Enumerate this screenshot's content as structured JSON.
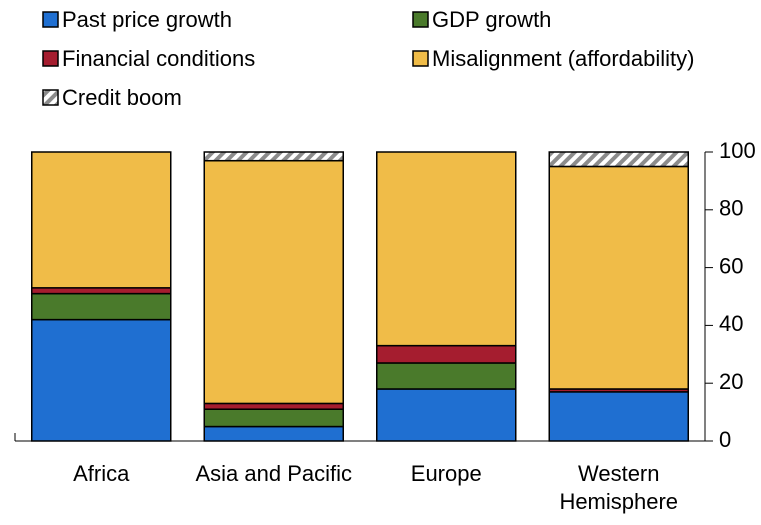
{
  "chart_data": {
    "type": "stacked_bar",
    "categories": [
      "Africa",
      "Asia and Pacific",
      "Europe",
      "Western Hemisphere"
    ],
    "series": [
      {
        "name": "Past price growth",
        "color": "#1f6fd1",
        "values": [
          42,
          5,
          18,
          17
        ]
      },
      {
        "name": "GDP growth",
        "color": "#4a7a2b",
        "values": [
          9,
          6,
          9,
          0
        ]
      },
      {
        "name": "Financial conditions",
        "color": "#a51d2f",
        "values": [
          2,
          2,
          6,
          1
        ]
      },
      {
        "name": "Misalignment (affordability)",
        "color": "#f0bc48",
        "values": [
          47,
          84,
          67,
          77
        ]
      },
      {
        "name": "Credit boom",
        "color": "#8c8c8c",
        "hatch": true,
        "values": [
          0,
          3,
          0,
          5
        ]
      }
    ],
    "ylim": [
      0,
      100
    ],
    "yticks": [
      0,
      20,
      40,
      60,
      80,
      100
    ],
    "y_axis_side": "right"
  }
}
